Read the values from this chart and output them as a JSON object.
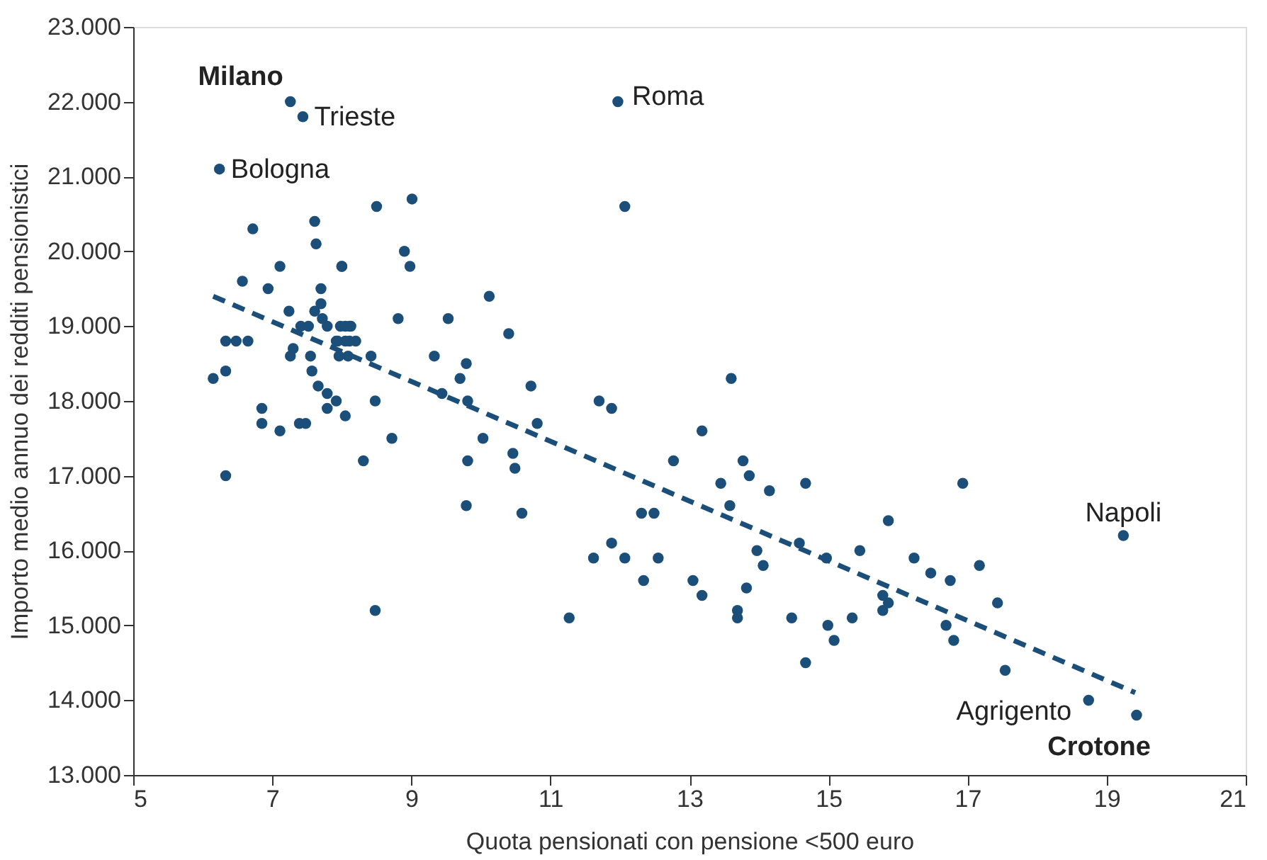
{
  "chart_data": {
    "type": "scatter",
    "xlabel": "Quota pensionati con pensione <500 euro",
    "ylabel": "Importo medio annuo dei redditi pensionistici",
    "xlim": [
      5,
      21
    ],
    "xticks": [
      5,
      7,
      9,
      11,
      13,
      15,
      17,
      19,
      21
    ],
    "ylim": [
      13000,
      23000
    ],
    "yticks": [
      {
        "value": 13000,
        "label": "13.000"
      },
      {
        "value": 14000,
        "label": "14.000"
      },
      {
        "value": 15000,
        "label": "15.000"
      },
      {
        "value": 16000,
        "label": "16.000"
      },
      {
        "value": 17000,
        "label": "17.000"
      },
      {
        "value": 18000,
        "label": "18.000"
      },
      {
        "value": 19000,
        "label": "19.000"
      },
      {
        "value": 20000,
        "label": "20.000"
      },
      {
        "value": 21000,
        "label": "21.000"
      },
      {
        "value": 22000,
        "label": "22.000"
      },
      {
        "value": 23000,
        "label": "23.000"
      }
    ],
    "grid": false,
    "marker": "circle",
    "series": [
      {
        "color": "#1b4f7a",
        "x": [
          7.26,
          7.44,
          6.24,
          11.97,
          19.24,
          18.74,
          19.43,
          6.72,
          6.57,
          6.94,
          6.33,
          6.15,
          6.33,
          6.48,
          6.65,
          6.85,
          6.85,
          6.33,
          7.11,
          7.11,
          7.26,
          7.3,
          7.39,
          7.48,
          7.61,
          7.63,
          7.24,
          7.52,
          7.61,
          7.7,
          7.7,
          7.72,
          7.41,
          7.55,
          7.57,
          7.66,
          7.79,
          7.79,
          7.92,
          7.98,
          8.11,
          8.09,
          8.2,
          7.79,
          7.92,
          7.96,
          8.11,
          8.0,
          8.0,
          8.05,
          8.13,
          7.94,
          8.05,
          8.05,
          8.31,
          8.42,
          8.5,
          8.48,
          8.72,
          8.81,
          8.9,
          8.98,
          9.01,
          8.48,
          9.33,
          9.44,
          9.53,
          9.7,
          9.79,
          9.81,
          9.81,
          9.79,
          10.03,
          10.12,
          10.4,
          10.46,
          10.49,
          10.59,
          10.72,
          10.81,
          11.27,
          11.62,
          11.7,
          11.88,
          11.88,
          12.07,
          12.07,
          12.31,
          12.34,
          12.49,
          12.55,
          12.77,
          13.05,
          13.18,
          13.18,
          13.45,
          13.58,
          13.6,
          13.69,
          13.69,
          13.77,
          13.82,
          13.86,
          13.97,
          14.06,
          14.15,
          14.47,
          14.58,
          14.67,
          14.67,
          14.97,
          14.99,
          15.08,
          15.34,
          15.45,
          15.78,
          15.78,
          15.86,
          15.86,
          16.23,
          16.47,
          16.69,
          16.75,
          16.8,
          16.93,
          17.17,
          17.43,
          17.54
        ],
        "values": [
          22000,
          21800,
          21100,
          22000,
          16200,
          14000,
          13800,
          20300,
          19600,
          19500,
          18800,
          18300,
          18400,
          18800,
          18800,
          17900,
          17700,
          17000,
          19800,
          17600,
          18600,
          18700,
          17700,
          17700,
          20400,
          20100,
          19200,
          19000,
          19200,
          19500,
          19300,
          19100,
          19000,
          18600,
          18400,
          18200,
          18100,
          19000,
          18800,
          19000,
          19000,
          18600,
          18800,
          17900,
          18000,
          18600,
          18800,
          19800,
          19800,
          18800,
          19000,
          18800,
          19000,
          17800,
          17200,
          18600,
          20600,
          18000,
          17500,
          19100,
          20000,
          19800,
          20700,
          15200,
          18600,
          18100,
          19100,
          18300,
          18500,
          18000,
          17200,
          16600,
          17500,
          19400,
          18900,
          17300,
          17100,
          16500,
          18200,
          17700,
          15100,
          15900,
          18000,
          17900,
          16100,
          15900,
          20600,
          16500,
          15600,
          16500,
          15900,
          17200,
          15600,
          15400,
          17600,
          16900,
          16600,
          18300,
          15100,
          15200,
          17200,
          15500,
          17000,
          16000,
          15800,
          16800,
          15100,
          16100,
          16900,
          14500,
          15900,
          15000,
          14800,
          15100,
          16000,
          15400,
          15200,
          15300,
          16400,
          15900,
          15700,
          15000,
          15600,
          14800,
          16900,
          15800,
          15300,
          14400
        ]
      },
      {
        "type": "line",
        "color": "#1b4f7a",
        "line_style": "dashed",
        "marker": "none",
        "x": [
          6.15,
          19.41
        ],
        "values": [
          19400,
          14100
        ]
      }
    ],
    "annotations": [
      {
        "text": "Milano",
        "x": 7.26,
        "y": 22000
      },
      {
        "text": "Trieste",
        "x": 7.44,
        "y": 21800
      },
      {
        "text": "Bologna",
        "x": 6.24,
        "y": 21100
      },
      {
        "text": "Roma",
        "x": 11.97,
        "y": 22000
      },
      {
        "text": "Napoli",
        "x": 19.24,
        "y": 16200
      },
      {
        "text": "Agrigento",
        "x": 18.74,
        "y": 14000
      },
      {
        "text": "Crotone",
        "x": 19.43,
        "y": 13800
      }
    ]
  }
}
